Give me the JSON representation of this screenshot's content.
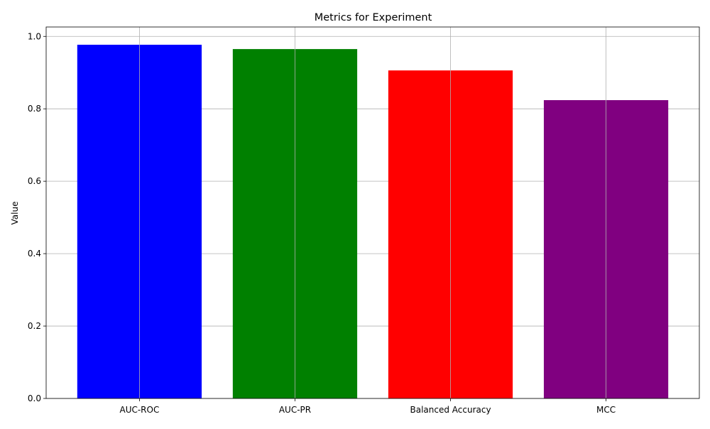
{
  "chart_data": {
    "type": "bar",
    "title": "Metrics for Experiment",
    "xlabel": "",
    "ylabel": "Value",
    "categories": [
      "AUC-ROC",
      "AUC-PR",
      "Balanced Accuracy",
      "MCC"
    ],
    "values": [
      0.977,
      0.965,
      0.906,
      0.824
    ],
    "colors": [
      "#0000ff",
      "#008000",
      "#ff0000",
      "#800080"
    ],
    "ylim": [
      0,
      1.026
    ],
    "yticks": [
      0.0,
      0.2,
      0.4,
      0.6,
      0.8,
      1.0
    ],
    "ytick_labels": [
      "0.0",
      "0.2",
      "0.4",
      "0.6",
      "0.8",
      "1.0"
    ],
    "grid": true,
    "legend": "none"
  }
}
